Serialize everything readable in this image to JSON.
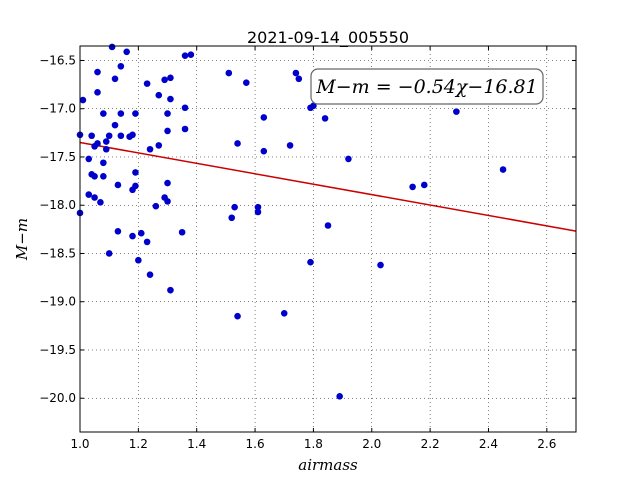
{
  "chart_data": {
    "type": "scatter",
    "title": "2021-09-14_005550",
    "xlabel": "airmass",
    "ylabel": "M−m",
    "xlim": [
      1.0,
      2.7
    ],
    "ylim": [
      -20.35,
      -16.35
    ],
    "y_inverted": true,
    "grid": true,
    "x_ticks": [
      "1.0",
      "1.2",
      "1.4",
      "1.6",
      "1.8",
      "2.0",
      "2.2",
      "2.4",
      "2.6"
    ],
    "y_ticks": [
      "−16.5",
      "−17.0",
      "−17.5",
      "−18.0",
      "−18.5",
      "−19.0",
      "−19.5",
      "−20.0"
    ],
    "fit_annotation": "M−m = −0.54χ−16.81",
    "fit_line": {
      "slope": -0.54,
      "intercept": -16.81,
      "color": "#cc0000"
    },
    "point_color": "#0000cc",
    "points": [
      [
        1.0,
        -17.27
      ],
      [
        1.0,
        -18.08
      ],
      [
        1.01,
        -16.91
      ],
      [
        1.03,
        -17.52
      ],
      [
        1.03,
        -17.89
      ],
      [
        1.04,
        -17.68
      ],
      [
        1.04,
        -17.28
      ],
      [
        1.05,
        -17.39
      ],
      [
        1.05,
        -17.7
      ],
      [
        1.05,
        -17.92
      ],
      [
        1.06,
        -16.83
      ],
      [
        1.06,
        -17.36
      ],
      [
        1.06,
        -16.62
      ],
      [
        1.07,
        -17.97
      ],
      [
        1.08,
        -17.56
      ],
      [
        1.08,
        -17.05
      ],
      [
        1.08,
        -17.7
      ],
      [
        1.09,
        -17.42
      ],
      [
        1.09,
        -17.34
      ],
      [
        1.1,
        -18.5
      ],
      [
        1.1,
        -17.28
      ],
      [
        1.11,
        -16.36
      ],
      [
        1.12,
        -16.69
      ],
      [
        1.12,
        -17.17
      ],
      [
        1.13,
        -17.79
      ],
      [
        1.13,
        -18.27
      ],
      [
        1.14,
        -16.56
      ],
      [
        1.14,
        -17.05
      ],
      [
        1.14,
        -17.28
      ],
      [
        1.16,
        -16.41
      ],
      [
        1.17,
        -17.29
      ],
      [
        1.18,
        -17.84
      ],
      [
        1.18,
        -18.32
      ],
      [
        1.18,
        -17.27
      ],
      [
        1.19,
        -17.8
      ],
      [
        1.19,
        -17.05
      ],
      [
        1.19,
        -17.66
      ],
      [
        1.2,
        -18.57
      ],
      [
        1.21,
        -18.29
      ],
      [
        1.23,
        -18.38
      ],
      [
        1.23,
        -16.74
      ],
      [
        1.24,
        -18.72
      ],
      [
        1.24,
        -17.42
      ],
      [
        1.26,
        -18.01
      ],
      [
        1.27,
        -17.38
      ],
      [
        1.27,
        -16.86
      ],
      [
        1.29,
        -17.92
      ],
      [
        1.29,
        -16.7
      ],
      [
        1.3,
        -17.96
      ],
      [
        1.3,
        -17.05
      ],
      [
        1.3,
        -17.23
      ],
      [
        1.3,
        -17.77
      ],
      [
        1.31,
        -18.88
      ],
      [
        1.31,
        -16.68
      ],
      [
        1.31,
        -16.9
      ],
      [
        1.35,
        -18.28
      ],
      [
        1.36,
        -16.45
      ],
      [
        1.36,
        -17.21
      ],
      [
        1.36,
        -16.99
      ],
      [
        1.38,
        -16.44
      ],
      [
        1.51,
        -16.63
      ],
      [
        1.52,
        -18.13
      ],
      [
        1.53,
        -18.02
      ],
      [
        1.54,
        -17.36
      ],
      [
        1.54,
        -19.15
      ],
      [
        1.57,
        -16.73
      ],
      [
        1.61,
        -18.07
      ],
      [
        1.61,
        -18.02
      ],
      [
        1.63,
        -17.09
      ],
      [
        1.63,
        -17.44
      ],
      [
        1.7,
        -19.12
      ],
      [
        1.72,
        -17.38
      ],
      [
        1.74,
        -16.63
      ],
      [
        1.75,
        -16.69
      ],
      [
        1.79,
        -18.59
      ],
      [
        1.79,
        -16.99
      ],
      [
        1.8,
        -16.97
      ],
      [
        1.84,
        -17.1
      ],
      [
        1.85,
        -18.21
      ],
      [
        1.89,
        -19.98
      ],
      [
        1.92,
        -17.52
      ],
      [
        2.03,
        -18.62
      ],
      [
        2.14,
        -17.81
      ],
      [
        2.18,
        -17.79
      ],
      [
        2.29,
        -17.03
      ],
      [
        2.45,
        -17.63
      ]
    ]
  }
}
